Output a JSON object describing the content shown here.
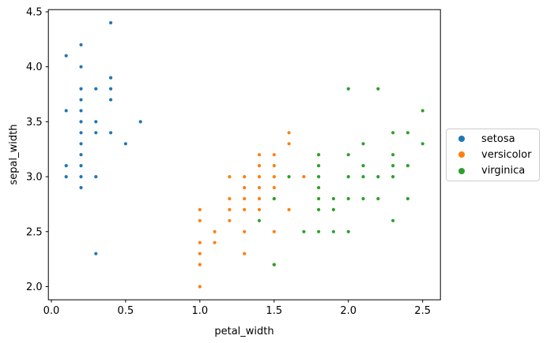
{
  "figure": {
    "background": "#ffffff"
  },
  "chart_data": {
    "type": "scatter",
    "title": "",
    "xlabel": "petal_width",
    "ylabel": "sepal_width",
    "xlim": [
      -0.02,
      2.62
    ],
    "ylim": [
      1.88,
      4.52
    ],
    "x_tick_labels": [
      "0.0",
      "0.5",
      "1.0",
      "1.5",
      "2.0",
      "2.5"
    ],
    "y_tick_labels": [
      "2.0",
      "2.5",
      "3.0",
      "3.5",
      "4.0",
      "4.5"
    ],
    "grid": false,
    "legend": {
      "position": "outside-right",
      "entries": [
        "setosa",
        "versicolor",
        "virginica"
      ]
    },
    "series": [
      {
        "name": "setosa",
        "color": "#1f77b4",
        "points": [
          [
            0.2,
            3.5
          ],
          [
            0.2,
            3.0
          ],
          [
            0.2,
            3.2
          ],
          [
            0.2,
            3.1
          ],
          [
            0.2,
            3.6
          ],
          [
            0.4,
            3.9
          ],
          [
            0.3,
            3.4
          ],
          [
            0.2,
            3.4
          ],
          [
            0.2,
            2.9
          ],
          [
            0.1,
            3.1
          ],
          [
            0.2,
            3.7
          ],
          [
            0.1,
            3.0
          ],
          [
            0.2,
            4.0
          ],
          [
            0.4,
            4.4
          ],
          [
            0.3,
            3.5
          ],
          [
            0.3,
            3.8
          ],
          [
            0.4,
            3.7
          ],
          [
            0.5,
            3.3
          ],
          [
            0.4,
            3.4
          ],
          [
            0.1,
            4.1
          ],
          [
            0.2,
            4.2
          ],
          [
            0.1,
            3.6
          ],
          [
            0.3,
            2.3
          ],
          [
            0.6,
            3.5
          ],
          [
            0.4,
            3.8
          ],
          [
            0.3,
            3.0
          ],
          [
            0.2,
            3.8
          ],
          [
            0.2,
            3.3
          ]
        ]
      },
      {
        "name": "versicolor",
        "color": "#ff7f0e",
        "points": [
          [
            1.4,
            3.2
          ],
          [
            1.5,
            3.2
          ],
          [
            1.5,
            3.1
          ],
          [
            1.3,
            2.3
          ],
          [
            1.5,
            2.8
          ],
          [
            1.3,
            2.8
          ],
          [
            1.6,
            3.3
          ],
          [
            1.0,
            2.4
          ],
          [
            1.3,
            2.9
          ],
          [
            1.4,
            2.7
          ],
          [
            1.0,
            2.0
          ],
          [
            1.5,
            3.0
          ],
          [
            1.0,
            2.2
          ],
          [
            1.4,
            2.9
          ],
          [
            1.4,
            3.1
          ],
          [
            1.0,
            2.7
          ],
          [
            1.5,
            2.2
          ],
          [
            1.1,
            2.5
          ],
          [
            1.8,
            3.2
          ],
          [
            1.5,
            2.5
          ],
          [
            1.2,
            2.8
          ],
          [
            1.4,
            3.0
          ],
          [
            1.4,
            2.8
          ],
          [
            1.7,
            3.0
          ],
          [
            1.5,
            2.9
          ],
          [
            1.0,
            2.6
          ],
          [
            1.1,
            2.4
          ],
          [
            1.2,
            2.7
          ],
          [
            1.6,
            2.7
          ],
          [
            1.6,
            3.4
          ],
          [
            1.3,
            3.0
          ],
          [
            1.3,
            2.5
          ],
          [
            1.2,
            2.6
          ],
          [
            1.0,
            2.3
          ],
          [
            1.3,
            2.7
          ],
          [
            1.2,
            3.0
          ]
        ]
      },
      {
        "name": "virginica",
        "color": "#2ca02c",
        "points": [
          [
            2.5,
            3.3
          ],
          [
            1.9,
            2.7
          ],
          [
            2.1,
            3.0
          ],
          [
            1.8,
            2.9
          ],
          [
            2.2,
            3.0
          ],
          [
            1.7,
            2.5
          ],
          [
            1.8,
            2.5
          ],
          [
            2.5,
            3.6
          ],
          [
            2.0,
            3.2
          ],
          [
            2.0,
            2.5
          ],
          [
            2.4,
            2.8
          ],
          [
            2.3,
            3.2
          ],
          [
            1.8,
            3.0
          ],
          [
            2.2,
            3.8
          ],
          [
            2.3,
            2.6
          ],
          [
            1.5,
            2.2
          ],
          [
            2.0,
            2.8
          ],
          [
            1.8,
            2.7
          ],
          [
            2.1,
            3.3
          ],
          [
            1.8,
            3.2
          ],
          [
            1.8,
            2.8
          ],
          [
            2.1,
            2.8
          ],
          [
            1.6,
            3.0
          ],
          [
            1.9,
            2.8
          ],
          [
            2.0,
            3.8
          ],
          [
            2.2,
            2.8
          ],
          [
            1.5,
            2.8
          ],
          [
            1.4,
            2.6
          ],
          [
            2.3,
            3.0
          ],
          [
            2.4,
            3.4
          ],
          [
            1.8,
            3.1
          ],
          [
            2.1,
            3.1
          ],
          [
            2.4,
            3.1
          ],
          [
            2.3,
            3.1
          ],
          [
            1.9,
            2.5
          ],
          [
            2.0,
            3.0
          ],
          [
            2.3,
            3.4
          ]
        ]
      }
    ]
  }
}
